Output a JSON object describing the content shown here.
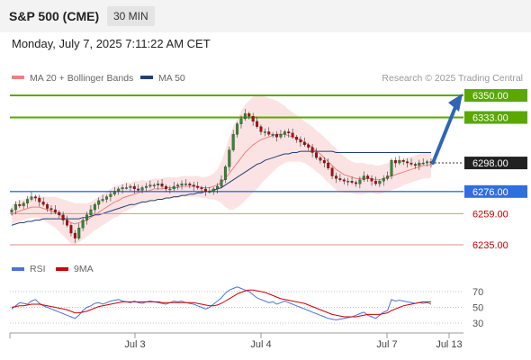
{
  "header": {
    "symbol": "S&P 500 (CME)",
    "timeframe": "30 MIN"
  },
  "timestamp": "Monday, July 7, 2025 7:11:22 AM CET",
  "legend": {
    "ma20": {
      "label": "MA 20 + Bollinger Bands",
      "color": "#f08080"
    },
    "ma50": {
      "label": "MA 50",
      "color": "#1f3f7a"
    }
  },
  "source": "Research © 2025 Trading Central",
  "colors": {
    "up": "#2e8b2e",
    "down": "#c00000",
    "target": "#5aa800",
    "support": "#2f6fe0",
    "current": "#222222",
    "arrow": "#2f66b3"
  },
  "chart_data": [
    {
      "type": "candlestick",
      "x_ticks": [
        "Jul 3",
        "Jul 4",
        "Jul 7",
        "Jul 13"
      ],
      "ylim": [
        6222,
        6360
      ],
      "current_price": {
        "value": 6298,
        "label": "6298.00"
      },
      "levels": [
        {
          "value": 6350,
          "label": "6350.00",
          "kind": "target"
        },
        {
          "value": 6333,
          "label": "6333.00",
          "kind": "target"
        },
        {
          "value": 6276,
          "label": "6276.00",
          "kind": "support"
        },
        {
          "value": 6259,
          "label": "6259.00",
          "kind": "support2"
        },
        {
          "value": 6235,
          "label": "6235.00",
          "kind": "support2"
        }
      ],
      "projection": {
        "from": 6298,
        "to": 6350
      },
      "closes": [
        6262,
        6266,
        6265,
        6267,
        6270,
        6272,
        6271,
        6268,
        6266,
        6263,
        6262,
        6260,
        6258,
        6254,
        6250,
        6244,
        6240,
        6248,
        6254,
        6258,
        6262,
        6266,
        6269,
        6270,
        6272,
        6274,
        6276,
        6278,
        6279,
        6279,
        6280,
        6278,
        6277,
        6279,
        6280,
        6281,
        6281,
        6282,
        6280,
        6278,
        6278,
        6280,
        6281,
        6282,
        6282,
        6281,
        6280,
        6279,
        6278,
        6276,
        6276,
        6278,
        6280,
        6285,
        6295,
        6308,
        6320,
        6328,
        6332,
        6336,
        6334,
        6330,
        6326,
        6322,
        6322,
        6320,
        6320,
        6318,
        6320,
        6322,
        6321,
        6318,
        6316,
        6314,
        6312,
        6310,
        6306,
        6302,
        6300,
        6298,
        6294,
        6288,
        6286,
        6285,
        6284,
        6284,
        6283,
        6282,
        6285,
        6288,
        6286,
        6284,
        6282,
        6284,
        6286,
        6288,
        6300,
        6298,
        6300,
        6299,
        6298,
        6297,
        6296,
        6298,
        6298,
        6299,
        6298
      ],
      "ma20": [
        6258,
        6260,
        6261,
        6262,
        6263,
        6264,
        6264,
        6264,
        6263,
        6262,
        6261,
        6260,
        6258,
        6256,
        6254,
        6252,
        6251,
        6252,
        6253,
        6254,
        6256,
        6258,
        6260,
        6262,
        6264,
        6266,
        6268,
        6269,
        6271,
        6272,
        6273,
        6274,
        6275,
        6276,
        6276,
        6277,
        6278,
        6278,
        6278,
        6279,
        6279,
        6279,
        6279,
        6280,
        6280,
        6280,
        6280,
        6280,
        6279,
        6279,
        6279,
        6280,
        6281,
        6283,
        6286,
        6290,
        6294,
        6298,
        6302,
        6306,
        6309,
        6312,
        6314,
        6316,
        6317,
        6318,
        6319,
        6320,
        6320,
        6320,
        6319,
        6318,
        6317,
        6316,
        6314,
        6312,
        6310,
        6307,
        6305,
        6302,
        6299,
        6296,
        6293,
        6291,
        6289,
        6288,
        6287,
        6286,
        6286,
        6286,
        6286,
        6286,
        6285,
        6285,
        6286,
        6287,
        6288,
        6289,
        6290,
        6291,
        6292,
        6293,
        6294,
        6295,
        6296,
        6296,
        6297
      ],
      "ma50": [
        6250,
        6251,
        6252,
        6252,
        6253,
        6253,
        6254,
        6254,
        6255,
        6255,
        6255,
        6255,
        6255,
        6255,
        6255,
        6255,
        6255,
        6255,
        6256,
        6256,
        6257,
        6258,
        6258,
        6259,
        6260,
        6261,
        6262,
        6263,
        6264,
        6265,
        6266,
        6266,
        6267,
        6268,
        6268,
        6269,
        6269,
        6270,
        6270,
        6271,
        6271,
        6272,
        6272,
        6273,
        6273,
        6274,
        6274,
        6275,
        6275,
        6276,
        6276,
        6277,
        6278,
        6279,
        6281,
        6283,
        6285,
        6287,
        6289,
        6291,
        6293,
        6295,
        6297,
        6298,
        6300,
        6301,
        6302,
        6303,
        6304,
        6305,
        6305,
        6306,
        6306,
        6307,
        6307,
        6307,
        6307,
        6307,
        6307,
        6307,
        6307,
        6307,
        6306,
        6306,
        6306,
        6306,
        6306,
        6306,
        6306,
        6306,
        6306,
        6306,
        6306,
        6306,
        6306,
        6306,
        6306,
        6306,
        6306,
        6306,
        6306,
        6306,
        6306,
        6306,
        6306,
        6306,
        6306
      ],
      "bb_width": [
        8,
        8,
        8,
        8,
        8,
        8,
        8,
        9,
        9,
        10,
        11,
        12,
        13,
        14,
        15,
        16,
        16,
        15,
        14,
        13,
        12,
        12,
        12,
        12,
        12,
        12,
        12,
        12,
        11,
        11,
        10,
        10,
        9,
        9,
        8,
        8,
        8,
        8,
        8,
        8,
        8,
        8,
        8,
        8,
        8,
        8,
        8,
        8,
        8,
        8,
        9,
        10,
        12,
        16,
        22,
        28,
        32,
        34,
        36,
        37,
        37,
        37,
        36,
        34,
        32,
        30,
        28,
        26,
        24,
        22,
        20,
        19,
        18,
        17,
        16,
        16,
        16,
        16,
        16,
        16,
        16,
        16,
        16,
        15,
        14,
        13,
        12,
        12,
        12,
        12,
        11,
        11,
        11,
        11,
        11,
        11,
        11,
        11,
        11,
        10,
        10,
        10,
        10,
        10,
        10,
        10,
        10
      ]
    },
    {
      "type": "line",
      "series": [
        {
          "name": "RSI",
          "color": "#4a74d6"
        },
        {
          "name": "9MA",
          "color": "#d00000"
        }
      ],
      "ylim": [
        20,
        80
      ],
      "y_ticks": [
        70,
        50,
        30
      ],
      "rsi": [
        48,
        52,
        56,
        55,
        54,
        58,
        60,
        55,
        52,
        50,
        48,
        46,
        44,
        42,
        40,
        38,
        36,
        40,
        46,
        50,
        52,
        55,
        56,
        54,
        56,
        58,
        59,
        60,
        58,
        57,
        56,
        58,
        56,
        55,
        57,
        58,
        57,
        56,
        55,
        54,
        56,
        58,
        57,
        58,
        56,
        55,
        54,
        52,
        50,
        48,
        50,
        54,
        58,
        62,
        68,
        72,
        74,
        76,
        74,
        72,
        70,
        66,
        62,
        60,
        58,
        56,
        57,
        54,
        56,
        58,
        56,
        54,
        52,
        50,
        48,
        46,
        44,
        42,
        40,
        38,
        36,
        35,
        34,
        35,
        36,
        37,
        38,
        40,
        42,
        44,
        40,
        38,
        36,
        40,
        44,
        46,
        60,
        58,
        59,
        58,
        57,
        56,
        55,
        56,
        55,
        56,
        54
      ],
      "ma9": [
        50,
        51,
        52,
        52,
        53,
        54,
        54,
        54,
        53,
        52,
        51,
        50,
        49,
        48,
        47,
        45,
        43,
        43,
        44,
        45,
        47,
        49,
        51,
        52,
        53,
        54,
        55,
        56,
        57,
        57,
        57,
        57,
        57,
        57,
        57,
        57,
        57,
        57,
        56,
        56,
        56,
        56,
        56,
        56,
        56,
        56,
        56,
        55,
        54,
        53,
        52,
        52,
        53,
        55,
        58,
        61,
        64,
        67,
        69,
        71,
        72,
        72,
        71,
        70,
        69,
        67,
        65,
        63,
        61,
        60,
        59,
        58,
        57,
        56,
        55,
        53,
        51,
        49,
        47,
        45,
        43,
        41,
        40,
        39,
        38,
        38,
        38,
        38,
        39,
        40,
        41,
        41,
        41,
        41,
        42,
        43,
        46,
        48,
        50,
        52,
        53,
        54,
        55,
        56,
        57,
        57,
        57
      ]
    }
  ]
}
